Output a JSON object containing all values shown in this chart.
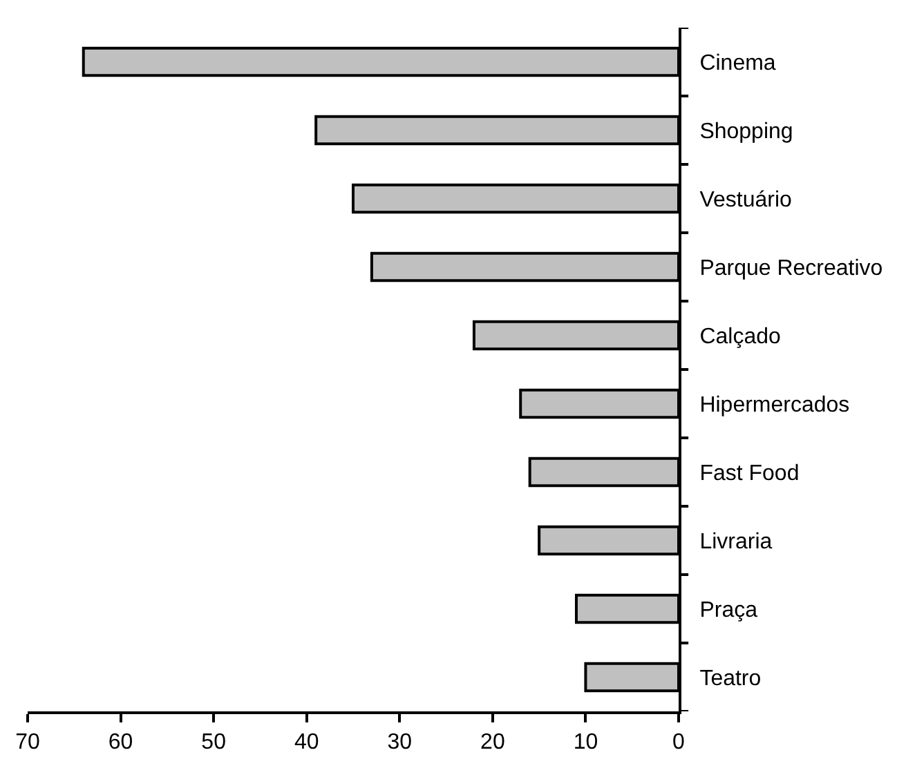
{
  "chart_data": {
    "type": "bar",
    "orientation": "horizontal",
    "categories": [
      "Cinema",
      "Shopping",
      "Vestuário",
      "Parque Recreativo",
      "Calçado",
      "Hipermercados",
      "Fast Food",
      "Livraria",
      "Praça",
      "Teatro"
    ],
    "values": [
      64,
      39,
      35,
      33,
      22,
      17,
      16,
      15,
      11,
      10
    ],
    "color": "#c0c0c0",
    "xlim": [
      70,
      0
    ],
    "xticks": [
      70,
      60,
      50,
      40,
      30,
      20,
      10,
      0
    ]
  }
}
